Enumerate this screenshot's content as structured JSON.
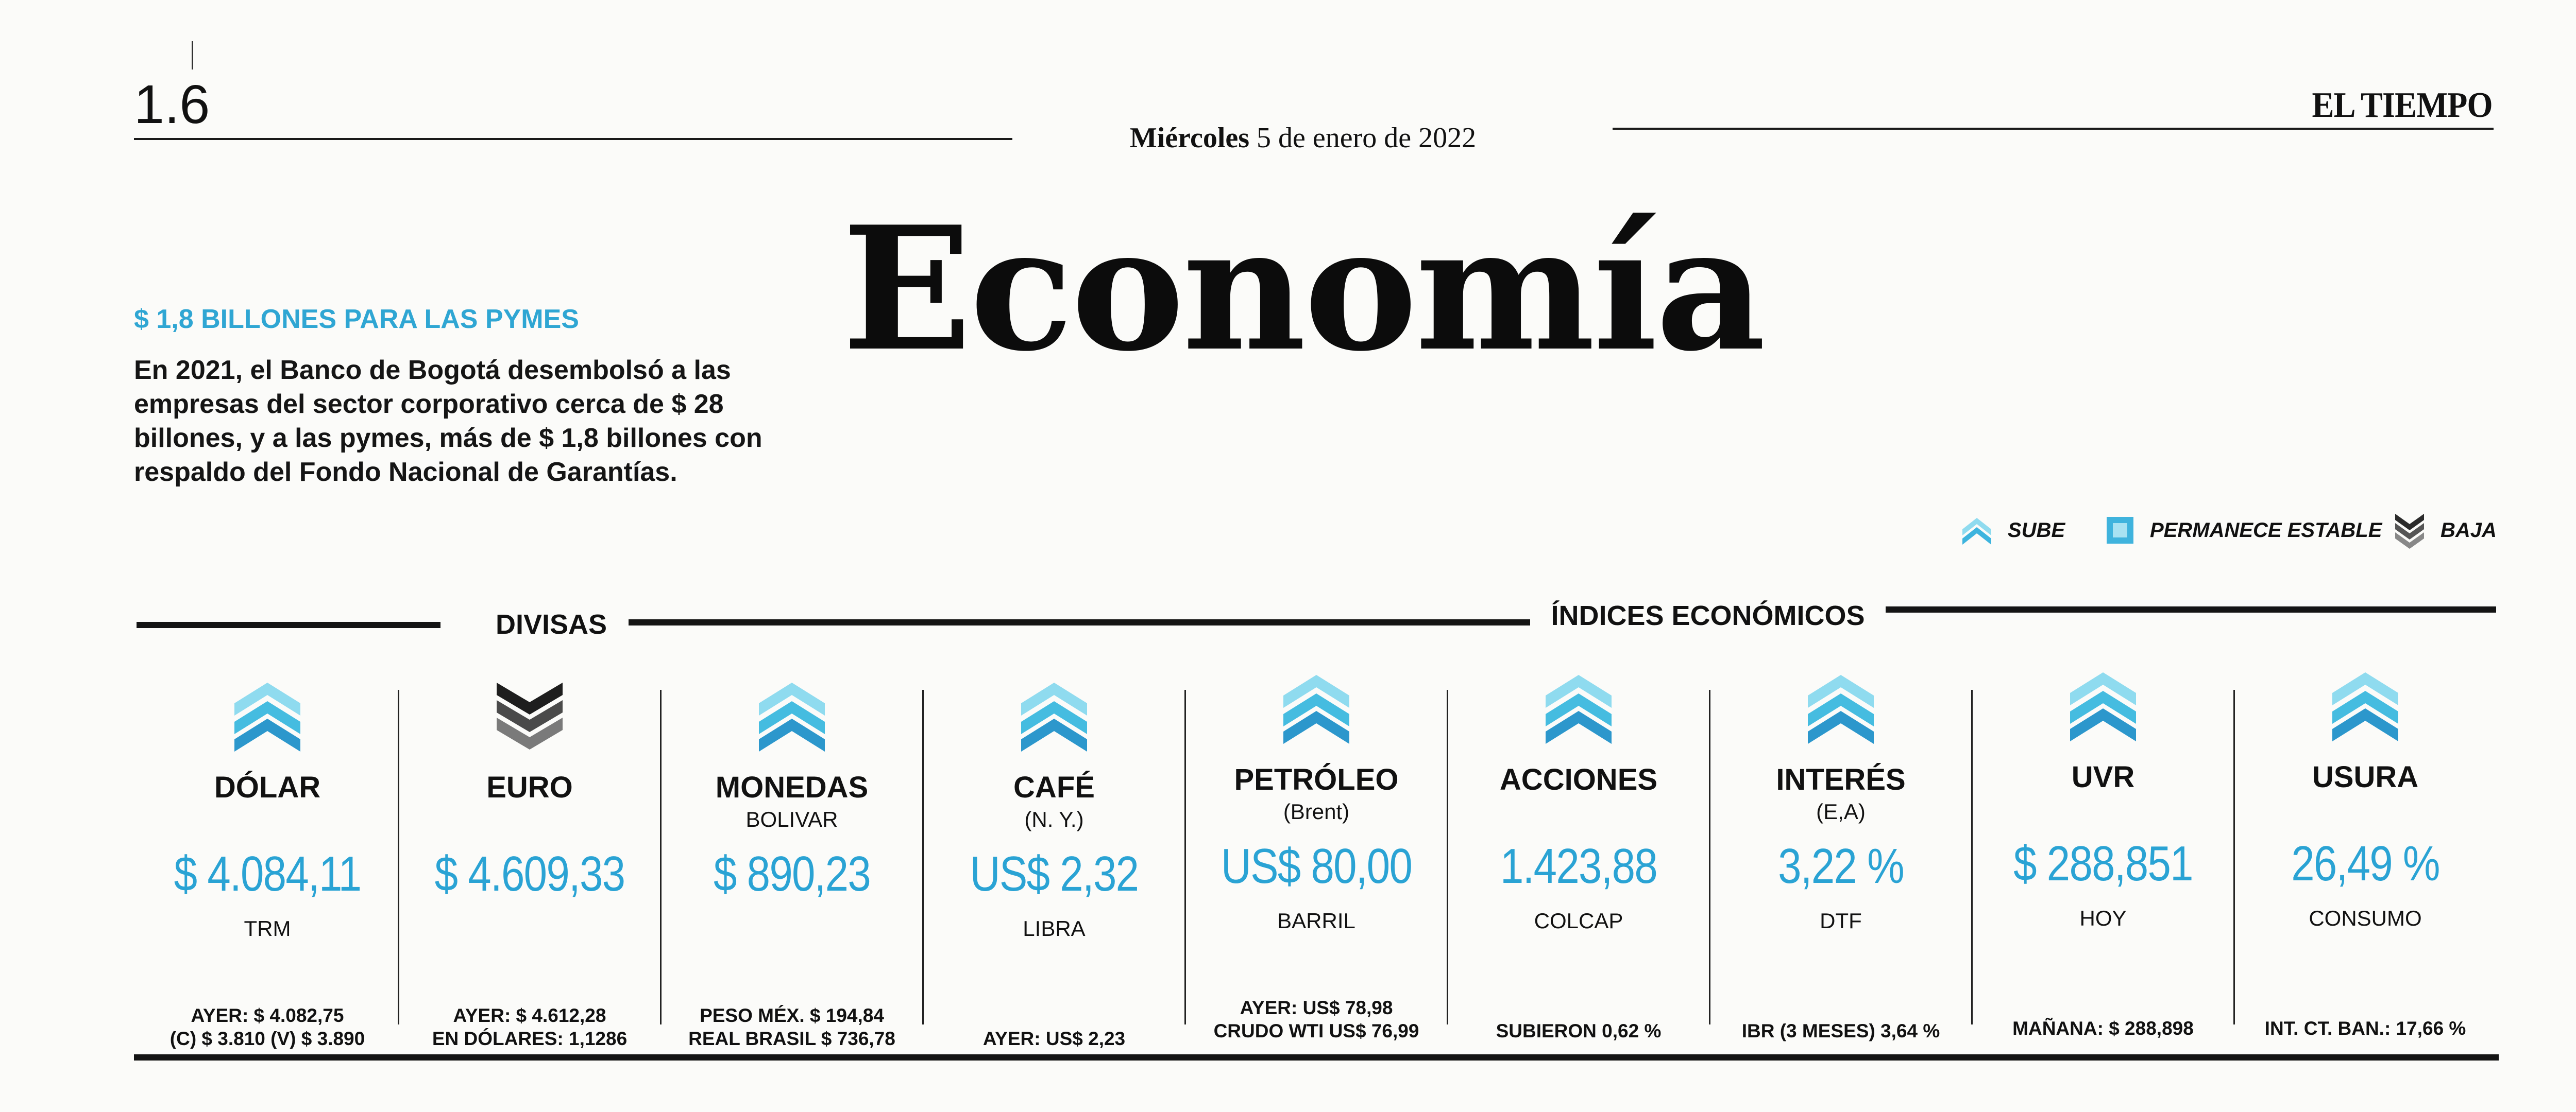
{
  "header": {
    "page_number": "1.6",
    "date_weekday": "Miércoles",
    "date_rest": "5 de enero de 2022",
    "brand": "EL TIEMPO"
  },
  "section_title": "Economía",
  "lead": {
    "kicker": "$ 1,8 BILLONES PARA LAS PYMES",
    "body": "En 2021, el Banco de Bogotá desembolsó a las empresas del sector corporativo cerca de $ 28 billones, y a las pymes, más de $ 1,8 billones con respaldo del Fondo Nacional de Garantías."
  },
  "legend": {
    "up": {
      "label": "SUBE",
      "icon": "chevron-up-icon"
    },
    "stable": {
      "label": "PERMANECE ESTABLE",
      "icon": "square-icon"
    },
    "down": {
      "label": "BAJA",
      "icon": "chevron-down-icon"
    }
  },
  "bands": {
    "left": "DIVISAS",
    "right": "ÍNDICES ECONÓMICOS"
  },
  "colors": {
    "accent": "#2aa3d4",
    "up_light": "#8fdbef",
    "up_mid": "#45bce0",
    "up_dark": "#2c97cc",
    "down_dark": "#2b2b2b",
    "down_mid": "#6a6a6a"
  },
  "indicators": [
    {
      "name": "DÓLAR",
      "sub": "",
      "value": "$ 4.084,11",
      "unit": "TRM",
      "foot1": "AYER: $ 4.082,75",
      "foot2": "(C) $ 3.810 (V) $ 3.890",
      "trend": "up"
    },
    {
      "name": "EURO",
      "sub": "",
      "value": "$ 4.609,33",
      "unit": "",
      "foot1": "AYER: $ 4.612,28",
      "foot2": "EN DÓLARES: 1,1286",
      "trend": "down"
    },
    {
      "name": "MONEDAS",
      "sub": "BOLIVAR",
      "value": "$ 890,23",
      "unit": "",
      "foot1": "PESO MÉX. $ 194,84",
      "foot2": "REAL BRASIL $ 736,78",
      "trend": "up"
    },
    {
      "name": "CAFÉ",
      "sub": "(N. Y.)",
      "value": "US$ 2,32",
      "unit": "LIBRA",
      "foot1": "",
      "foot2": "AYER: US$ 2,23",
      "trend": "up"
    },
    {
      "name": "PETRÓLEO",
      "sub": "(Brent)",
      "value": "US$ 80,00",
      "unit": "BARRIL",
      "foot1": "AYER: US$ 78,98",
      "foot2": "CRUDO WTI US$ 76,99",
      "trend": "up"
    },
    {
      "name": "ACCIONES",
      "sub": "",
      "value": "1.423,88",
      "unit": "COLCAP",
      "foot1": "",
      "foot2": "SUBIERON 0,62 %",
      "trend": "up"
    },
    {
      "name": "INTERÉS",
      "sub": "(E,A)",
      "value": "3,22 %",
      "unit": "DTF",
      "foot1": "",
      "foot2": "IBR (3 MESES) 3,64 %",
      "trend": "up"
    },
    {
      "name": "UVR",
      "sub": "",
      "value": "$ 288,851",
      "unit": "HOY",
      "foot1": "",
      "foot2": "MAÑANA: $ 288,898",
      "trend": "up"
    },
    {
      "name": "USURA",
      "sub": "",
      "value": "26,49 %",
      "unit": "CONSUMO",
      "foot1": "",
      "foot2": "INT. CT. BAN.: 17,66 %",
      "trend": "up"
    }
  ]
}
